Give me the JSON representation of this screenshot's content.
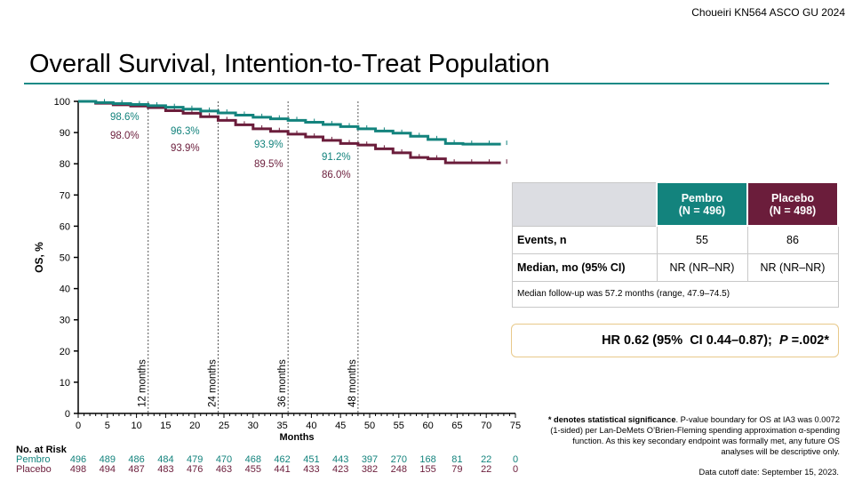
{
  "source": "Choueiri KN564 ASCO GU 2024",
  "title": "Overall Survival, Intention-to-Treat Population",
  "colors": {
    "pembro": "#13837d",
    "placebo": "#6b1d3b",
    "accent_rule": "#1a8a86"
  },
  "chart_data": {
    "type": "line",
    "xlabel": "Months",
    "ylabel": "OS, %",
    "xlim": [
      0,
      75
    ],
    "ylim": [
      0,
      100
    ],
    "x_ticks": [
      0,
      5,
      10,
      15,
      20,
      25,
      30,
      35,
      40,
      45,
      50,
      55,
      60,
      65,
      70,
      75
    ],
    "y_ticks": [
      0,
      10,
      20,
      30,
      40,
      50,
      60,
      70,
      80,
      90,
      100
    ],
    "series": [
      {
        "name": "Pembro",
        "color": "#13837d",
        "x": [
          0,
          3,
          6,
          9,
          12,
          15,
          18,
          21,
          24,
          27,
          30,
          33,
          36,
          39,
          42,
          45,
          48,
          51,
          54,
          57,
          60,
          63,
          66,
          69,
          72
        ],
        "y": [
          100,
          99.6,
          99.3,
          99,
          98.6,
          98.1,
          97.5,
          96.9,
          96.3,
          95.6,
          94.9,
          94.4,
          93.9,
          93.3,
          92.6,
          91.9,
          91.2,
          90.5,
          89.8,
          88.8,
          87.8,
          86.5,
          86.3,
          86.3,
          86.3
        ]
      },
      {
        "name": "Placebo",
        "color": "#6b1d3b",
        "x": [
          0,
          3,
          6,
          9,
          12,
          15,
          18,
          21,
          24,
          27,
          30,
          33,
          36,
          39,
          42,
          45,
          48,
          51,
          54,
          57,
          60,
          63,
          66,
          69,
          72
        ],
        "y": [
          100,
          99.4,
          98.9,
          98.5,
          98.0,
          97.0,
          96.2,
          95.1,
          93.9,
          92.5,
          91.2,
          90.4,
          89.5,
          88.6,
          87.5,
          86.5,
          86.0,
          84.8,
          83.5,
          82.0,
          81.6,
          80.3,
          80.3,
          80.3,
          80.3
        ]
      }
    ],
    "landmarks": [
      {
        "x": 12,
        "label": "12 months",
        "pembro": "98.6%",
        "placebo": "98.0%"
      },
      {
        "x": 24,
        "label": "24 months",
        "pembro": "96.3%",
        "placebo": "93.9%"
      },
      {
        "x": 36,
        "label": "36 months",
        "pembro": "93.9%",
        "placebo": "89.5%"
      },
      {
        "x": 48,
        "label": "48 months",
        "pembro": "91.2%",
        "placebo": "86.0%"
      }
    ],
    "at_risk": {
      "title": "No. at Risk",
      "rows": [
        {
          "name": "Pembro",
          "values": [
            496,
            489,
            486,
            484,
            479,
            470,
            468,
            462,
            451,
            443,
            397,
            270,
            168,
            81,
            22,
            0
          ]
        },
        {
          "name": "Placebo",
          "values": [
            498,
            494,
            487,
            483,
            476,
            463,
            455,
            441,
            433,
            423,
            382,
            248,
            155,
            79,
            22,
            0
          ]
        }
      ]
    }
  },
  "table": {
    "headers": [
      "Pembro\n(N = 496)",
      "Placebo\n(N = 498)"
    ],
    "pembro_header_1": "Pembro",
    "pembro_header_2": "(N = 496)",
    "placebo_header_1": "Placebo",
    "placebo_header_2": "(N = 498)",
    "rows": [
      {
        "label": "Events, n",
        "pembro": "55",
        "placebo": "86"
      },
      {
        "label": "Median, mo (95% CI)",
        "pembro": "NR (NR–NR)",
        "placebo": "NR (NR–NR)"
      }
    ],
    "followup_note": "Median follow-up was 57.2 months (range, 47.9–74.5)"
  },
  "hr_text_1": "HR 0.62 (95%  CI 0.44–0.87);  ",
  "hr_p_label": "P",
  "hr_text_2": " =.002*",
  "footnote_bold": "* denotes statistical significance",
  "footnote_rest": ". P-value boundary for OS at IA3 was 0.0072 (1-sided) per Lan-DeMets O’Brien-Fleming spending approximation α-spending function. As this key secondary endpoint was formally met, any future OS analyses will be descriptive only.",
  "cutoff": "Data cutoff date: September 15, 2023."
}
